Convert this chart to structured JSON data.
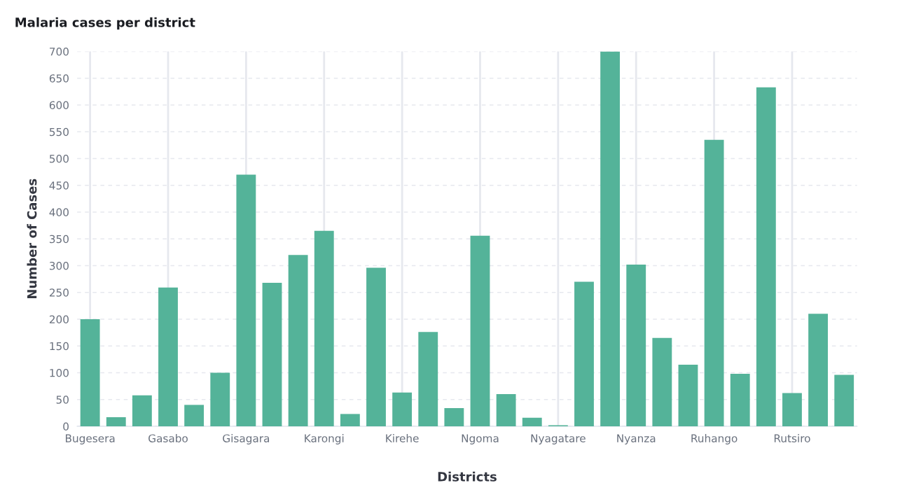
{
  "chart_data": {
    "type": "bar",
    "title": "Malaria cases per district",
    "xlabel": "Districts",
    "ylabel": "Number of Cases",
    "categories": [
      "Bugesera",
      null,
      null,
      "Gasabo",
      null,
      null,
      "Gisagara",
      null,
      null,
      "Karongi",
      null,
      null,
      "Kirehe",
      null,
      null,
      "Ngoma",
      null,
      null,
      "Nyagatare",
      null,
      null,
      "Nyanza",
      null,
      null,
      "Ruhango",
      null,
      null,
      "Rutsiro",
      null,
      null
    ],
    "values": [
      200,
      17,
      58,
      259,
      40,
      100,
      470,
      268,
      320,
      365,
      23,
      296,
      63,
      176,
      34,
      356,
      60,
      16,
      2,
      270,
      700,
      302,
      165,
      115,
      535,
      98,
      633,
      62,
      210,
      96
    ],
    "color": "#54b399",
    "ylim": [
      0,
      700
    ],
    "yticks": [
      0,
      50,
      100,
      150,
      200,
      250,
      300,
      350,
      400,
      450,
      500,
      550,
      600,
      650,
      700
    ],
    "grid": true
  }
}
